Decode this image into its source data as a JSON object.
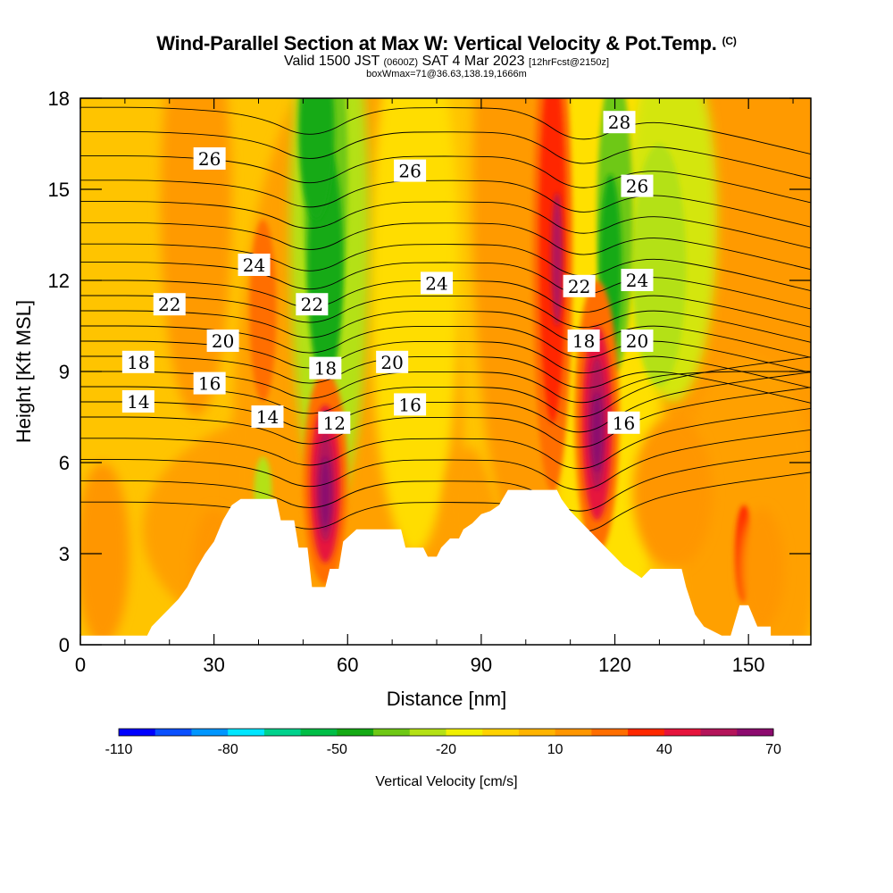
{
  "header": {
    "title_main": "Wind-Parallel Section at Max W: Vertical Velocity & Pot.Temp.",
    "title_mark": "(C)",
    "valid_a": "Valid 1500 JST",
    "valid_b": "(0600Z)",
    "valid_c": "SAT 4 Mar 2023",
    "valid_d": "[12hrFcst@2150z]",
    "box_info": "boxWmax=71@36.63,138.19,1666m"
  },
  "chart_data": {
    "type": "heatmap",
    "xlabel": "Distance [nm]",
    "ylabel": "Height [Kft MSL]",
    "xlim": [
      0,
      164
    ],
    "ylim": [
      0,
      18
    ],
    "x_ticks": [
      0,
      30,
      60,
      90,
      120,
      150
    ],
    "y_ticks": [
      0,
      3,
      6,
      9,
      12,
      15,
      18
    ],
    "colorbar": {
      "label": "Vertical Velocity [cm/s]",
      "tick_labels": [
        -110,
        -80,
        -50,
        -20,
        10,
        40,
        70
      ],
      "bins": [
        -110,
        -100,
        -90,
        -80,
        -70,
        -60,
        -50,
        -40,
        -30,
        -20,
        -10,
        0,
        10,
        20,
        30,
        40,
        50,
        60,
        70
      ],
      "colors": [
        "#0000ff",
        "#0a50ff",
        "#0096ff",
        "#00e6ff",
        "#00d28c",
        "#00be46",
        "#14aa14",
        "#6ec814",
        "#b4e114",
        "#f0f000",
        "#ffd200",
        "#ffb400",
        "#ff9600",
        "#ff6e00",
        "#ff2800",
        "#e6143c",
        "#b4145a",
        "#8c0a6e"
      ]
    },
    "terrain_profile": [
      [
        0,
        0.3
      ],
      [
        15,
        0.3
      ],
      [
        16,
        0.6
      ],
      [
        18,
        0.9
      ],
      [
        20,
        1.2
      ],
      [
        22,
        1.5
      ],
      [
        24,
        1.9
      ],
      [
        26,
        2.5
      ],
      [
        28,
        3.0
      ],
      [
        30,
        3.4
      ],
      [
        32,
        4.1
      ],
      [
        34,
        4.6
      ],
      [
        36,
        4.8
      ],
      [
        44,
        4.8
      ],
      [
        45,
        4.1
      ],
      [
        48,
        4.1
      ],
      [
        49,
        3.2
      ],
      [
        51,
        3.2
      ],
      [
        52,
        1.9
      ],
      [
        55,
        1.9
      ],
      [
        56,
        2.5
      ],
      [
        58,
        2.5
      ],
      [
        59,
        3.4
      ],
      [
        62,
        3.8
      ],
      [
        72,
        3.8
      ],
      [
        73,
        3.2
      ],
      [
        77,
        3.2
      ],
      [
        78,
        2.9
      ],
      [
        80,
        2.9
      ],
      [
        81,
        3.2
      ],
      [
        83,
        3.5
      ],
      [
        85,
        3.5
      ],
      [
        86,
        3.8
      ],
      [
        88,
        4.0
      ],
      [
        90,
        4.3
      ],
      [
        92,
        4.4
      ],
      [
        94,
        4.6
      ],
      [
        96,
        5.1
      ],
      [
        107,
        5.1
      ],
      [
        108,
        4.8
      ],
      [
        110,
        4.4
      ],
      [
        112,
        4.1
      ],
      [
        114,
        3.8
      ],
      [
        116,
        3.5
      ],
      [
        118,
        3.2
      ],
      [
        120,
        2.9
      ],
      [
        122,
        2.6
      ],
      [
        124,
        2.4
      ],
      [
        126,
        2.2
      ],
      [
        128,
        2.5
      ],
      [
        135,
        2.5
      ],
      [
        136,
        1.9
      ],
      [
        138,
        1.0
      ],
      [
        140,
        0.6
      ],
      [
        144,
        0.3
      ],
      [
        146,
        0.3
      ],
      [
        148,
        1.3
      ],
      [
        150,
        1.3
      ],
      [
        152,
        0.6
      ],
      [
        155,
        0.6
      ],
      [
        155,
        0.3
      ],
      [
        164,
        0.3
      ]
    ],
    "contour_labels": [
      {
        "text": "26",
        "x": 29,
        "y": 16.0
      },
      {
        "text": "26",
        "x": 74,
        "y": 15.6
      },
      {
        "text": "28",
        "x": 121,
        "y": 17.2
      },
      {
        "text": "26",
        "x": 125,
        "y": 15.1
      },
      {
        "text": "24",
        "x": 39,
        "y": 12.5
      },
      {
        "text": "24",
        "x": 80,
        "y": 11.9
      },
      {
        "text": "24",
        "x": 125,
        "y": 12.0
      },
      {
        "text": "22",
        "x": 20,
        "y": 11.2
      },
      {
        "text": "22",
        "x": 52,
        "y": 11.2
      },
      {
        "text": "22",
        "x": 112,
        "y": 11.8
      },
      {
        "text": "20",
        "x": 32,
        "y": 10.0
      },
      {
        "text": "20",
        "x": 70,
        "y": 9.3
      },
      {
        "text": "20",
        "x": 125,
        "y": 10.0
      },
      {
        "text": "18",
        "x": 13,
        "y": 9.3
      },
      {
        "text": "18",
        "x": 55,
        "y": 9.1
      },
      {
        "text": "18",
        "x": 113,
        "y": 10.0
      },
      {
        "text": "16",
        "x": 29,
        "y": 8.6
      },
      {
        "text": "16",
        "x": 74,
        "y": 7.9
      },
      {
        "text": "16",
        "x": 122,
        "y": 7.3
      },
      {
        "text": "14",
        "x": 13,
        "y": 8.0
      },
      {
        "text": "14",
        "x": 42,
        "y": 7.5
      },
      {
        "text": "12",
        "x": 57,
        "y": 7.3
      }
    ]
  }
}
